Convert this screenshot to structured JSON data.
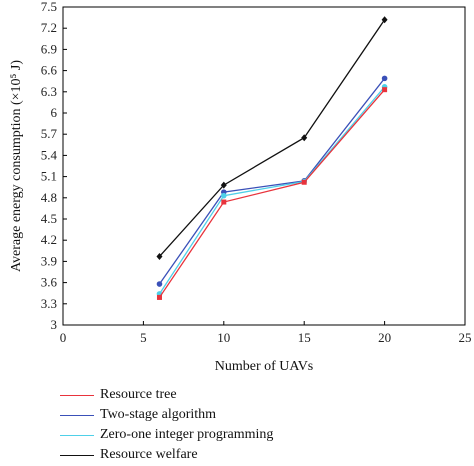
{
  "chart_data": {
    "type": "line",
    "xlabel": "Number of UAVs",
    "ylabel": "Average energy consumption (×10⁵ J)",
    "x": [
      6,
      10,
      15,
      20
    ],
    "xlim": [
      0,
      25
    ],
    "ylim": [
      3,
      7.5
    ],
    "xticks": [
      "0",
      "5",
      "10",
      "15",
      "20",
      "25"
    ],
    "yticks": [
      "3",
      "3.3",
      "3.6",
      "3.9",
      "4.2",
      "4.5",
      "4.8",
      "5.1",
      "5.4",
      "5.7",
      "6",
      "6.3",
      "6.6",
      "6.9",
      "7.2",
      "7.5"
    ],
    "grid": false,
    "legend_position": "below",
    "series": [
      {
        "name": "Resource tree",
        "values": [
          3.39,
          4.74,
          5.02,
          6.33
        ],
        "color": "#e8333c",
        "marker": "square"
      },
      {
        "name": "Two-stage algorithm",
        "values": [
          3.58,
          4.88,
          5.04,
          6.49
        ],
        "color": "#3a50b8",
        "marker": "circle"
      },
      {
        "name": "Zero-one integer programming",
        "values": [
          3.44,
          4.83,
          5.03,
          6.37
        ],
        "color": "#4fd0e8",
        "marker": "circle"
      },
      {
        "name": "Resource welfare",
        "values": [
          3.97,
          4.98,
          5.65,
          7.32
        ],
        "color": "#111111",
        "marker": "diamond"
      }
    ]
  }
}
